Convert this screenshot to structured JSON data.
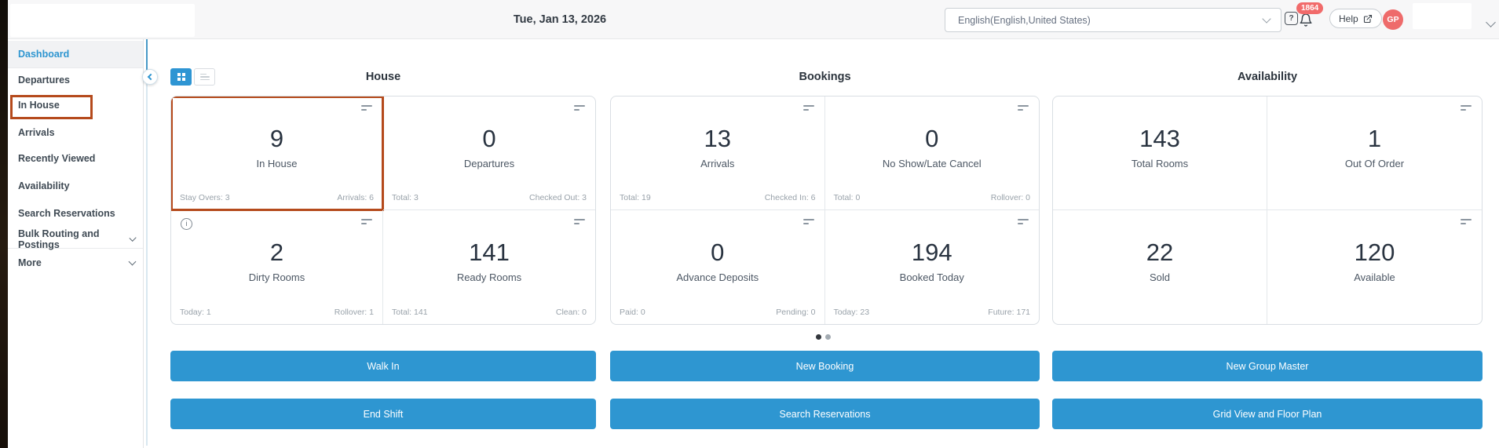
{
  "topbar": {
    "date": "Tue, Jan 13, 2026",
    "language_selected": "English(English,United States)",
    "notifications_badge": "1864",
    "help_label": "Help",
    "avatar_initials": "GP",
    "feedback_glyph": "?"
  },
  "sidebar": {
    "items": [
      {
        "label": "Dashboard",
        "active": true
      },
      {
        "label": "Departures"
      },
      {
        "label": "In House",
        "annotated": true
      },
      {
        "label": "Arrivals"
      },
      {
        "label": "Recently Viewed"
      },
      {
        "label": "Availability"
      },
      {
        "label": "Search Reservations"
      },
      {
        "label": "Bulk Routing and Postings",
        "expandable": true
      },
      {
        "label": "More",
        "expandable": true
      }
    ]
  },
  "dashboard": {
    "columns": [
      {
        "title": "House",
        "cards": [
          {
            "value": "9",
            "label": "In House",
            "footer_left": "Stay Overs: 3",
            "footer_right": "Arrivals: 6",
            "menu_icon": true,
            "annotated": true
          },
          {
            "value": "0",
            "label": "Departures",
            "footer_left": "Total: 3",
            "footer_right": "Checked Out: 3",
            "menu_icon": true
          },
          {
            "value": "2",
            "label": "Dirty Rooms",
            "footer_left": "Today: 1",
            "footer_right": "Rollover: 1",
            "menu_icon": true,
            "info_icon": true
          },
          {
            "value": "141",
            "label": "Ready Rooms",
            "footer_left": "Total: 141",
            "footer_right": "Clean: 0",
            "menu_icon": true
          }
        ],
        "actions": [
          "Walk In",
          "End Shift"
        ]
      },
      {
        "title": "Bookings",
        "cards": [
          {
            "value": "13",
            "label": "Arrivals",
            "footer_left": "Total: 19",
            "footer_right": "Checked In: 6",
            "menu_icon": true
          },
          {
            "value": "0",
            "label": "No Show/Late Cancel",
            "footer_left": "Total: 0",
            "footer_right": "Rollover: 0",
            "menu_icon": true
          },
          {
            "value": "0",
            "label": "Advance Deposits",
            "footer_left": "Paid: 0",
            "footer_right": "Pending: 0",
            "menu_icon": true
          },
          {
            "value": "194",
            "label": "Booked Today",
            "footer_left": "Today: 23",
            "footer_right": "Future: 171",
            "menu_icon": true
          }
        ],
        "actions": [
          "New Booking",
          "Search Reservations"
        ]
      },
      {
        "title": "Availability",
        "cards": [
          {
            "value": "143",
            "label": "Total Rooms"
          },
          {
            "value": "1",
            "label": "Out Of Order",
            "menu_icon": true
          },
          {
            "value": "22",
            "label": "Sold"
          },
          {
            "value": "120",
            "label": "Available",
            "menu_icon": true
          }
        ],
        "actions": [
          "New Group Master",
          "Grid View and Floor Plan"
        ]
      }
    ],
    "pagination_dots": [
      {
        "active": true
      },
      {
        "active": false
      }
    ]
  },
  "icons": {
    "grid_view": "grid-2x2",
    "list_view": "list-lines",
    "card_menu": "two-bars",
    "info": "i",
    "bell": "bell",
    "help_external": "external-link",
    "chevron": "chevron-down",
    "collapse": "chevron-left"
  },
  "colors": {
    "accent_blue": "#2e96d1",
    "annotation_orange": "#b54a1c",
    "badge_red": "#f16b6b",
    "avatar_red": "#ee6b6b"
  }
}
